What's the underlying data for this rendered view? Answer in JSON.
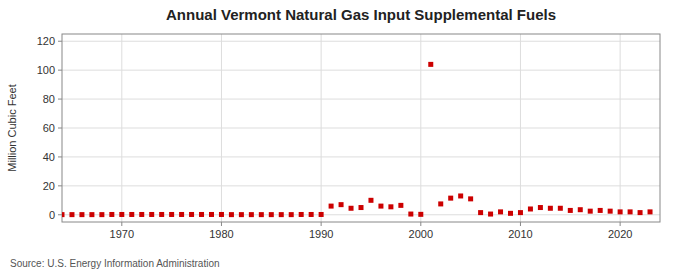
{
  "chart_data": {
    "type": "scatter",
    "title": "Annual Vermont Natural Gas Input Supplemental Fuels",
    "ylabel": "Million Cubic Feet",
    "source": "Source: U.S. Energy Information Administration",
    "color": "#cc0000",
    "marker": "square",
    "grid": true,
    "xlim": [
      1964,
      2024
    ],
    "ylim": [
      -5,
      125
    ],
    "xticks": [
      1970,
      1980,
      1990,
      2000,
      2010,
      2020
    ],
    "yticks": [
      0,
      20,
      40,
      60,
      80,
      100,
      120
    ],
    "x": [
      1964,
      1965,
      1966,
      1967,
      1968,
      1969,
      1970,
      1971,
      1972,
      1973,
      1974,
      1975,
      1976,
      1977,
      1978,
      1979,
      1980,
      1981,
      1982,
      1983,
      1984,
      1985,
      1986,
      1987,
      1988,
      1989,
      1990,
      1991,
      1992,
      1993,
      1994,
      1995,
      1996,
      1997,
      1998,
      1999,
      2000,
      2001,
      2002,
      2003,
      2004,
      2005,
      2006,
      2007,
      2008,
      2009,
      2010,
      2011,
      2012,
      2013,
      2014,
      2015,
      2016,
      2017,
      2018,
      2019,
      2020,
      2021,
      2022,
      2023
    ],
    "values": [
      0.1,
      0.1,
      0.1,
      0.1,
      0.1,
      0.2,
      0.2,
      0.2,
      0.2,
      0.2,
      0.2,
      0.2,
      0.2,
      0.2,
      0.2,
      0.2,
      0.2,
      0.1,
      0.1,
      0.1,
      0.1,
      0.1,
      0.1,
      0.1,
      0.2,
      0.2,
      0.2,
      6.0,
      7.0,
      4.5,
      5.0,
      10.0,
      6.0,
      5.5,
      6.5,
      0.5,
      0.3,
      104.0,
      7.5,
      11.5,
      13.0,
      11.0,
      1.5,
      0.5,
      2.0,
      1.0,
      1.5,
      4.0,
      5.0,
      4.5,
      4.5,
      3.0,
      3.5,
      2.5,
      3.0,
      2.5,
      2.0,
      2.0,
      1.5,
      2.0
    ]
  }
}
